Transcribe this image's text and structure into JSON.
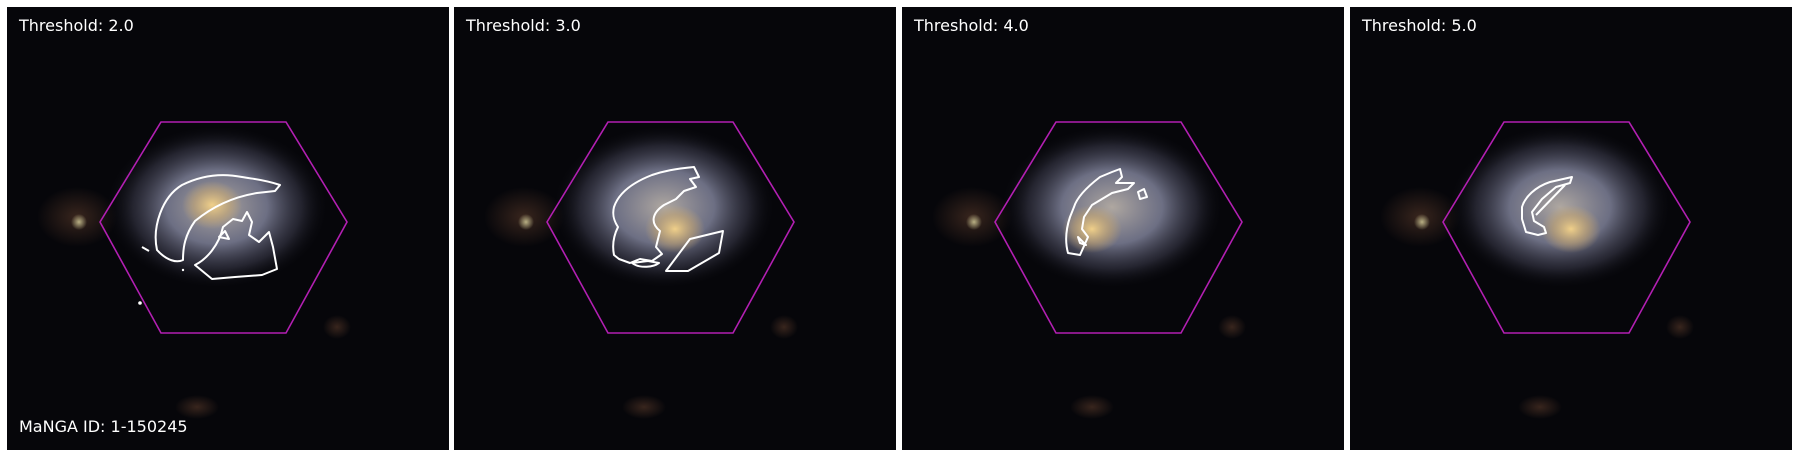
{
  "panels": [
    {
      "threshold_label": "Threshold: 2.0",
      "threshold": 2.0
    },
    {
      "threshold_label": "Threshold: 3.0",
      "threshold": 3.0
    },
    {
      "threshold_label": "Threshold: 4.0",
      "threshold": 4.0
    },
    {
      "threshold_label": "Threshold: 5.0",
      "threshold": 5.0
    }
  ],
  "manga_id_label": "MaNGA ID: 1-150245",
  "colors": {
    "hexagon": "#b21fb2",
    "contour": "#ffffff",
    "background": "#06060a",
    "galaxy_core": "#d8b878",
    "galaxy_disk": "#9a9cb8"
  }
}
